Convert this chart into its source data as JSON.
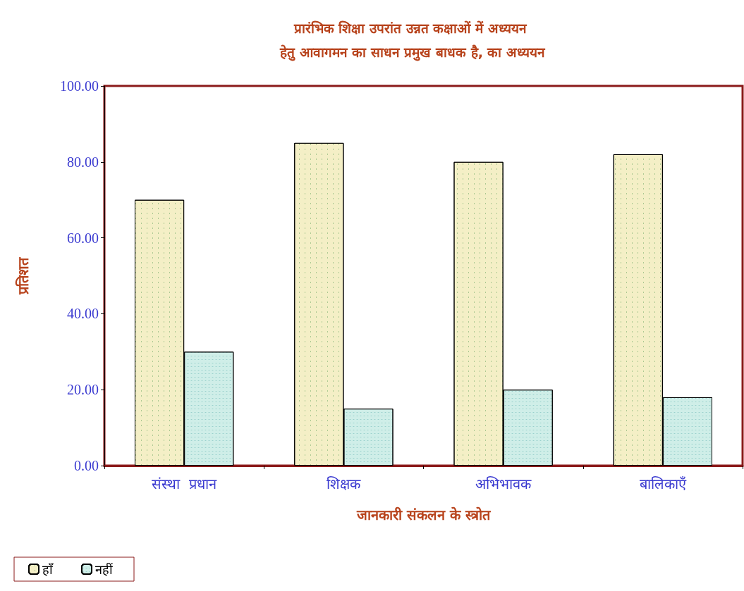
{
  "chart_data": {
    "type": "bar",
    "title": "प्रारंभिक शिक्षा उपरांत उन्नत कक्षाओं में अध्ययन हेतु आवागमन का साधन प्रमुख बाधक है, का अध्ययन",
    "xlabel": "जानकारी संकलन के स्त्रोत",
    "ylabel": "प्रतिशत",
    "categories": [
      "संस्था  प्रधान",
      "शिक्षक",
      "अभिभावक",
      "बालिकाएँ"
    ],
    "series": [
      {
        "name": "हाँ",
        "color": "#f4efc6",
        "values": [
          70,
          85,
          80,
          82
        ]
      },
      {
        "name": "नहीं",
        "color": "#cfeee8",
        "values": [
          30,
          15,
          20,
          18
        ]
      }
    ],
    "ylim": [
      0,
      100
    ],
    "yticks": [
      {
        "value": 0,
        "label": "0.00"
      },
      {
        "value": 20,
        "label": "20.00"
      },
      {
        "value": 40,
        "label": "40.00"
      },
      {
        "value": 60,
        "label": "60.00"
      },
      {
        "value": 80,
        "label": "80.00"
      },
      {
        "value": 100,
        "label": "100.00"
      }
    ],
    "grid": false,
    "legend": "bottom left"
  }
}
